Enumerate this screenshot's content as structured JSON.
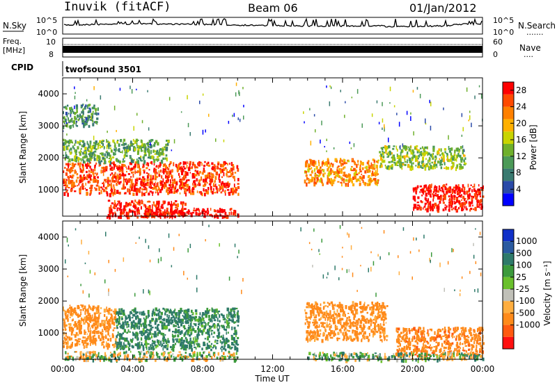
{
  "header": {
    "station": "Inuvik (fitACF)",
    "beam": "Beam 06",
    "date": "01/Jan/2012"
  },
  "strip_panels": {
    "nsky": {
      "label": "N.Sky",
      "ticks": [
        "10^5",
        "10^0"
      ],
      "right_ticks": [
        "10^5",
        "10^0"
      ],
      "right_label": "N.Search",
      "right_label_dots": "......."
    },
    "freq": {
      "label_line1": "Freq.",
      "label_line2": "[MHz]",
      "ticks": [
        "10",
        "8"
      ],
      "right_ticks": [
        "60",
        "0"
      ],
      "right_label": "Nave",
      "right_label_dots": "...."
    },
    "cpid": {
      "label": "CPID",
      "value": "twofsound 3501"
    }
  },
  "colors": {
    "power_scale": [
      "#0000ff",
      "#2a4aa8",
      "#3a7a70",
      "#4c9a58",
      "#6fb02c",
      "#c8d400",
      "#ffb000",
      "#ff8000",
      "#ff4a00",
      "#ff0000"
    ],
    "velocity_scale": [
      "#1030c8",
      "#2a5aa0",
      "#2e7a6a",
      "#3c9a3c",
      "#6ac02c",
      "#c0c0b8",
      "#ffae40",
      "#ff8a1a",
      "#ff5a10",
      "#ff1010"
    ],
    "grey": "#bdbdbd"
  },
  "chart_data": [
    {
      "type": "heatmap",
      "panel": "power",
      "ylabel": "Slant Range [km]",
      "xlabel": "",
      "x_ticks": [
        "00:00",
        "04:00",
        "08:00",
        "12:00",
        "16:00",
        "20:00",
        "00:00"
      ],
      "xlim": [
        0,
        24
      ],
      "ylim": [
        180,
        4500
      ],
      "y_ticks": [
        1000,
        2000,
        3000,
        4000
      ],
      "colorbar": {
        "label": "Power [dB]",
        "ticks": [
          4,
          8,
          12,
          16,
          20,
          24,
          28
        ],
        "range": [
          0,
          30
        ]
      },
      "echo_regions": [
        {
          "x": [
            0,
            10.0
          ],
          "y": [
            900,
            1900
          ],
          "value": 26
        },
        {
          "x": [
            2.5,
            7.0
          ],
          "y": [
            180,
            700
          ],
          "value": 28
        },
        {
          "x": [
            4.5,
            10.0
          ],
          "y": [
            180,
            450
          ],
          "value": 30
        },
        {
          "x": [
            13.8,
            18.0
          ],
          "y": [
            1200,
            2000
          ],
          "value": 22
        },
        {
          "x": [
            20.0,
            24.0
          ],
          "y": [
            400,
            1200
          ],
          "value": 29
        },
        {
          "x": [
            0,
            6.0
          ],
          "y": [
            1900,
            2600
          ],
          "value": 12
        },
        {
          "x": [
            0,
            2.0
          ],
          "y": [
            3000,
            3700
          ],
          "value": 10
        },
        {
          "x": [
            18.0,
            23.0
          ],
          "y": [
            1700,
            2400
          ],
          "value": 14
        }
      ]
    },
    {
      "type": "heatmap",
      "panel": "velocity",
      "ylabel": "Slant Range [km]",
      "xlabel": "Time UT",
      "x_ticks": [
        "00:00",
        "04:00",
        "08:00",
        "12:00",
        "16:00",
        "20:00",
        "00:00"
      ],
      "xlim": [
        0,
        24
      ],
      "ylim": [
        180,
        4500
      ],
      "y_ticks": [
        1000,
        2000,
        3000,
        4000
      ],
      "colorbar": {
        "label": "Velocity [m s⁻¹]",
        "ticks": [
          "1000",
          "500",
          "100",
          "25",
          "-25",
          "-100",
          "-500",
          "-1000"
        ]
      },
      "echo_regions": [
        {
          "x": [
            0,
            3.0
          ],
          "y": [
            600,
            1900
          ],
          "value": -200
        },
        {
          "x": [
            3.0,
            10.0
          ],
          "y": [
            500,
            1800
          ],
          "value": 150
        },
        {
          "x": [
            0,
            10.0
          ],
          "y": [
            180,
            450
          ],
          "value": 0
        },
        {
          "x": [
            13.8,
            18.5
          ],
          "y": [
            800,
            2000
          ],
          "value": -200
        },
        {
          "x": [
            19.0,
            24.0
          ],
          "y": [
            300,
            1200
          ],
          "value": -400
        },
        {
          "x": [
            14.0,
            24.0
          ],
          "y": [
            180,
            420
          ],
          "value": 60
        }
      ]
    }
  ]
}
